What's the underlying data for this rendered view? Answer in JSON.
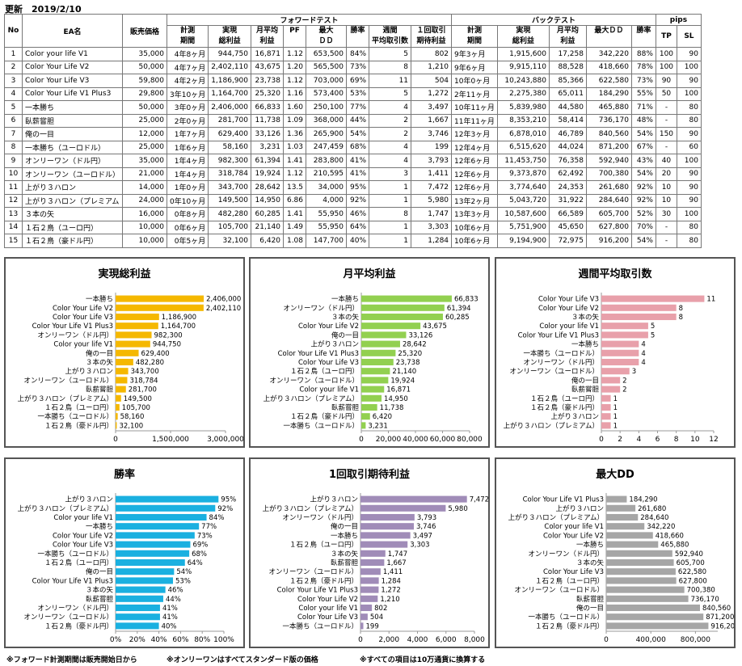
{
  "updated": "更新　2019/2/10",
  "table": {
    "group_forward": "フォワードテスト",
    "group_back": "バックテスト",
    "group_pips": "pips",
    "h_no": "No",
    "h_ea": "EA名",
    "h_price": "販売価格",
    "fwd_headers": [
      [
        "計測",
        "期間"
      ],
      [
        "実現",
        "総利益"
      ],
      [
        "月平均",
        "利益"
      ],
      [
        "PF",
        ""
      ],
      [
        "最大",
        "ＤＤ"
      ],
      [
        "勝率",
        ""
      ],
      [
        "週間",
        "平均取引数"
      ],
      [
        "１回取引",
        "期待利益"
      ]
    ],
    "back_headers": [
      [
        "計測",
        "期間"
      ],
      [
        "実現",
        "総利益"
      ],
      [
        "月平均",
        "利益"
      ],
      [
        "最大ＤＤ",
        ""
      ],
      [
        "勝率",
        ""
      ]
    ],
    "pips_headers": [
      "TP",
      "SL"
    ],
    "rows": [
      [
        "1",
        "Color your life V1",
        "35,000",
        "4年8ヶ月",
        "944,750",
        "16,871",
        "1.12",
        "653,500",
        "84%",
        "5",
        "802",
        "9年3ヶ月",
        "1,915,600",
        "17,258",
        "342,220",
        "88%",
        "100",
        "90"
      ],
      [
        "2",
        "Color Your Life V2",
        "50,000",
        "4年7ヶ月",
        "2,402,110",
        "43,675",
        "1.20",
        "565,500",
        "73%",
        "8",
        "1,210",
        "9年6ヶ月",
        "9,915,110",
        "88,528",
        "418,660",
        "78%",
        "100",
        "100"
      ],
      [
        "3",
        "Color Your Life V3",
        "59,800",
        "4年2ヶ月",
        "1,186,900",
        "23,738",
        "1.12",
        "703,000",
        "69%",
        "11",
        "504",
        "10年0ヶ月",
        "10,243,880",
        "85,366",
        "622,580",
        "73%",
        "90",
        "90"
      ],
      [
        "4",
        "Color Your Life V1 Plus3",
        "29,800",
        "3年10ヶ月",
        "1,164,700",
        "25,320",
        "1.16",
        "573,400",
        "53%",
        "5",
        "1,272",
        "2年11ヶ月",
        "2,275,380",
        "65,011",
        "184,290",
        "55%",
        "50",
        "100"
      ],
      [
        "5",
        "一本勝ち",
        "50,000",
        "3年0ヶ月",
        "2,406,000",
        "66,833",
        "1.60",
        "250,100",
        "77%",
        "4",
        "3,497",
        "10年11ヶ月",
        "5,839,980",
        "44,580",
        "465,880",
        "71%",
        "-",
        "80"
      ],
      [
        "6",
        "臥薪嘗胆",
        "25,000",
        "2年0ヶ月",
        "281,700",
        "11,738",
        "1.09",
        "368,000",
        "44%",
        "2",
        "1,667",
        "11年11ヶ月",
        "8,353,210",
        "58,414",
        "736,170",
        "48%",
        "-",
        "80"
      ],
      [
        "7",
        "俺の一目",
        "12,000",
        "1年7ヶ月",
        "629,400",
        "33,126",
        "1.36",
        "265,900",
        "54%",
        "2",
        "3,746",
        "12年3ヶ月",
        "6,878,010",
        "46,789",
        "840,560",
        "54%",
        "150",
        "90"
      ],
      [
        "8",
        "一本勝ち（ユーロドル）",
        "25,000",
        "1年6ヶ月",
        "58,160",
        "3,231",
        "1.03",
        "247,459",
        "68%",
        "4",
        "199",
        "12年4ヶ月",
        "6,515,620",
        "44,024",
        "871,200",
        "67%",
        "-",
        "60"
      ],
      [
        "9",
        "オンリーワン（ドル円）",
        "35,000",
        "1年4ヶ月",
        "982,300",
        "61,394",
        "1.41",
        "283,800",
        "41%",
        "4",
        "3,793",
        "12年6ヶ月",
        "11,453,750",
        "76,358",
        "592,940",
        "43%",
        "40",
        "100"
      ],
      [
        "10",
        "オンリーワン（ユーロドル）",
        "21,000",
        "1年4ヶ月",
        "318,784",
        "19,924",
        "1.12",
        "210,595",
        "41%",
        "3",
        "1,411",
        "12年6ヶ月",
        "9,373,870",
        "62,492",
        "700,380",
        "54%",
        "20",
        "90"
      ],
      [
        "11",
        "上がり３ハロン",
        "14,000",
        "1年0ヶ月",
        "343,700",
        "28,642",
        "13.5",
        "34,000",
        "95%",
        "1",
        "7,472",
        "12年6ヶ月",
        "3,774,640",
        "24,353",
        "261,680",
        "92%",
        "10",
        "90"
      ],
      [
        "12",
        "上がり３ハロン（プレミアム",
        "24,000",
        "0年10ヶ月",
        "149,500",
        "14,950",
        "6.86",
        "4,000",
        "92%",
        "1",
        "5,980",
        "13年2ヶ月",
        "5,043,720",
        "31,922",
        "284,640",
        "92%",
        "10",
        "90"
      ],
      [
        "13",
        "３本の矢",
        "16,000",
        "0年8ヶ月",
        "482,280",
        "60,285",
        "1.41",
        "55,950",
        "46%",
        "8",
        "1,747",
        "13年3ヶ月",
        "10,587,600",
        "66,589",
        "605,700",
        "52%",
        "30",
        "100"
      ],
      [
        "14",
        "１石２鳥（ユーロ円）",
        "10,000",
        "0年6ヶ月",
        "105,700",
        "21,140",
        "1.49",
        "55,950",
        "64%",
        "1",
        "3,303",
        "10年6ヶ月",
        "5,751,900",
        "45,650",
        "627,800",
        "70%",
        "-",
        "80"
      ],
      [
        "15",
        "１石２鳥（豪ドル円）",
        "10,000",
        "0年5ヶ月",
        "32,100",
        "6,420",
        "1.08",
        "147,700",
        "40%",
        "1",
        "1,284",
        "10年6ヶ月",
        "9,194,900",
        "72,975",
        "916,200",
        "54%",
        "-",
        "80"
      ]
    ]
  },
  "chart_data": [
    {
      "type": "bar",
      "title": "実現総利益",
      "color": "#F5B800",
      "categories": [
        "一本勝ち",
        "Color Your Life V2",
        "Color Your Life V3",
        "Color Your Life V1 Plus3",
        "オンリーワン（ドル円）",
        "Color your life V1",
        "俺の一目",
        "３本の矢",
        "上がり３ハロン",
        "オンリーワン（ユーロドル）",
        "臥薪嘗胆",
        "上がり３ハロン（プレミアム）",
        "１石２鳥（ユーロ円）",
        "一本勝ち（ユーロドル）",
        "１石２鳥（豪ドル円）"
      ],
      "values": [
        2406000,
        2402110,
        1186900,
        1164700,
        982300,
        944750,
        629400,
        482280,
        343700,
        318784,
        281700,
        149500,
        105700,
        58160,
        32100
      ],
      "labels": [
        "2,406,000",
        "2,402,110",
        "1,186,900",
        "1,164,700",
        "982,300",
        "944,750",
        "629,400",
        "482,280",
        "343,700",
        "318,784",
        "281,700",
        "149,500",
        "105,700",
        "58,160",
        "32,100"
      ],
      "xlim": [
        0,
        3000000
      ],
      "ticks": [
        "0",
        "1,500,000",
        "3,000,000"
      ]
    },
    {
      "type": "bar",
      "title": "月平均利益",
      "color": "#92D050",
      "categories": [
        "一本勝ち",
        "オンリーワン（ドル円）",
        "３本の矢",
        "Color Your Life V2",
        "俺の一目",
        "上がり３ハロン",
        "Color Your Life V1 Plus3",
        "Color Your Life V3",
        "１石２鳥（ユーロ円）",
        "オンリーワン（ユーロドル）",
        "Color your life V1",
        "上がり３ハロン（プレミアム）",
        "臥薪嘗胆",
        "１石２鳥（豪ドル円）",
        "一本勝ち（ユーロドル）"
      ],
      "values": [
        66833,
        61394,
        60285,
        43675,
        33126,
        28642,
        25320,
        23738,
        21140,
        19924,
        16871,
        14950,
        11738,
        6420,
        3231
      ],
      "labels": [
        "66,833",
        "61,394",
        "60,285",
        "43,675",
        "33,126",
        "28,642",
        "25,320",
        "23,738",
        "21,140",
        "19,924",
        "16,871",
        "14,950",
        "11,738",
        "6,420",
        "3,231"
      ],
      "xlim": [
        0,
        80000
      ],
      "ticks": [
        "0",
        "20,000",
        "40,000",
        "60,000",
        "80,000"
      ]
    },
    {
      "type": "bar",
      "title": "週間平均取引数",
      "color": "#E8A0AA",
      "categories": [
        "Color Your Life V3",
        "Color Your Life V2",
        "３本の矢",
        "Color your life V1",
        "Color Your Life V1 Plus3",
        "一本勝ち",
        "一本勝ち（ユーロドル）",
        "オンリーワン（ドル円）",
        "オンリーワン（ユーロドル）",
        "俺の一目",
        "臥薪嘗胆",
        "１石２鳥（ユーロ円）",
        "１石２鳥（豪ドル円）",
        "上がり３ハロン",
        "上がり３ハロン（プレミアム）"
      ],
      "values": [
        11,
        8,
        8,
        5,
        5,
        4,
        4,
        4,
        3,
        2,
        2,
        1,
        1,
        1,
        1
      ],
      "labels": [
        "11",
        "8",
        "8",
        "5",
        "5",
        "4",
        "4",
        "4",
        "3",
        "2",
        "2",
        "1",
        "1",
        "1",
        "1"
      ],
      "xlim": [
        0,
        12
      ],
      "ticks": [
        "0",
        "2",
        "4",
        "6",
        "8",
        "10",
        "12"
      ]
    },
    {
      "type": "bar",
      "title": "勝率",
      "color": "#1AB0E0",
      "categories": [
        "上がり３ハロン",
        "上がり３ハロン（プレミアム）",
        "Color your life V1",
        "一本勝ち",
        "Color Your Life V2",
        "Color Your Life V3",
        "一本勝ち（ユーロドル）",
        "１石２鳥（ユーロ円）",
        "俺の一目",
        "Color Your Life V1 Plus3",
        "３本の矢",
        "臥薪嘗胆",
        "オンリーワン（ドル円）",
        "オンリーワン（ユーロドル）",
        "１石２鳥（豪ドル円）"
      ],
      "values": [
        95,
        92,
        84,
        77,
        73,
        69,
        68,
        64,
        54,
        53,
        46,
        44,
        41,
        41,
        40
      ],
      "labels": [
        "95%",
        "92%",
        "84%",
        "77%",
        "73%",
        "69%",
        "68%",
        "64%",
        "54%",
        "53%",
        "46%",
        "44%",
        "41%",
        "41%",
        "40%"
      ],
      "xlim": [
        0,
        100
      ],
      "ticks": [
        "0%",
        "20%",
        "40%",
        "60%",
        "80%",
        "100%"
      ]
    },
    {
      "type": "bar",
      "title": "1回取引期待利益",
      "color": "#A08CB8",
      "categories": [
        "上がり３ハロン",
        "上がり３ハロン（プレミアム）",
        "オンリーワン（ドル円）",
        "俺の一目",
        "一本勝ち",
        "１石２鳥（ユーロ円）",
        "３本の矢",
        "臥薪嘗胆",
        "オンリーワン（ユーロドル）",
        "１石２鳥（豪ドル円）",
        "Color Your Life V1 Plus3",
        "Color Your Life V2",
        "Color your life V1",
        "Color Your Life V3",
        "一本勝ち（ユーロドル）"
      ],
      "values": [
        7472,
        5980,
        3793,
        3746,
        3497,
        3303,
        1747,
        1667,
        1411,
        1284,
        1272,
        1210,
        802,
        504,
        199
      ],
      "labels": [
        "7,472",
        "5,980",
        "3,793",
        "3,746",
        "3,497",
        "3,303",
        "1,747",
        "1,667",
        "1,411",
        "1,284",
        "1,272",
        "1,210",
        "802",
        "504",
        "199"
      ],
      "xlim": [
        0,
        8000
      ],
      "ticks": [
        "0",
        "2,000",
        "4,000",
        "6,000",
        "8,000"
      ]
    },
    {
      "type": "bar",
      "title": "最大DD",
      "color": "#A6A6A6",
      "categories": [
        "Color Your Life V1 Plus3",
        "上がり３ハロン",
        "上がり３ハロン（プレミアム）",
        "Color your life V1",
        "Color Your Life V2",
        "一本勝ち",
        "オンリーワン（ドル円）",
        "３本の矢",
        "Color Your Life V3",
        "１石２鳥（ユーロ円）",
        "オンリーワン（ユーロドル）",
        "臥薪嘗胆",
        "俺の一目",
        "一本勝ち（ユーロドル）",
        "１石２鳥（豪ドル円）"
      ],
      "values": [
        184290,
        261680,
        284640,
        342220,
        418660,
        465880,
        592940,
        605700,
        622580,
        627800,
        700380,
        736170,
        840560,
        871200,
        916200
      ],
      "labels": [
        "184,290",
        "261,680",
        "284,640",
        "342,220",
        "418,660",
        "465,880",
        "592,940",
        "605,700",
        "622,580",
        "627,800",
        "700,380",
        "736,170",
        "840,560",
        "871,200",
        "916,200"
      ],
      "xlim": [
        0,
        1000000
      ],
      "ticks": [
        "0",
        "400,000",
        "800,000"
      ],
      "tickvals": [
        0,
        400000,
        800000
      ]
    }
  ],
  "footnotes": [
    "※フォワード計測期間は販売開始日から",
    "※オンリーワンはすべてスタンダード版の価格",
    "※すべての項目は10万通貨に換算する"
  ]
}
